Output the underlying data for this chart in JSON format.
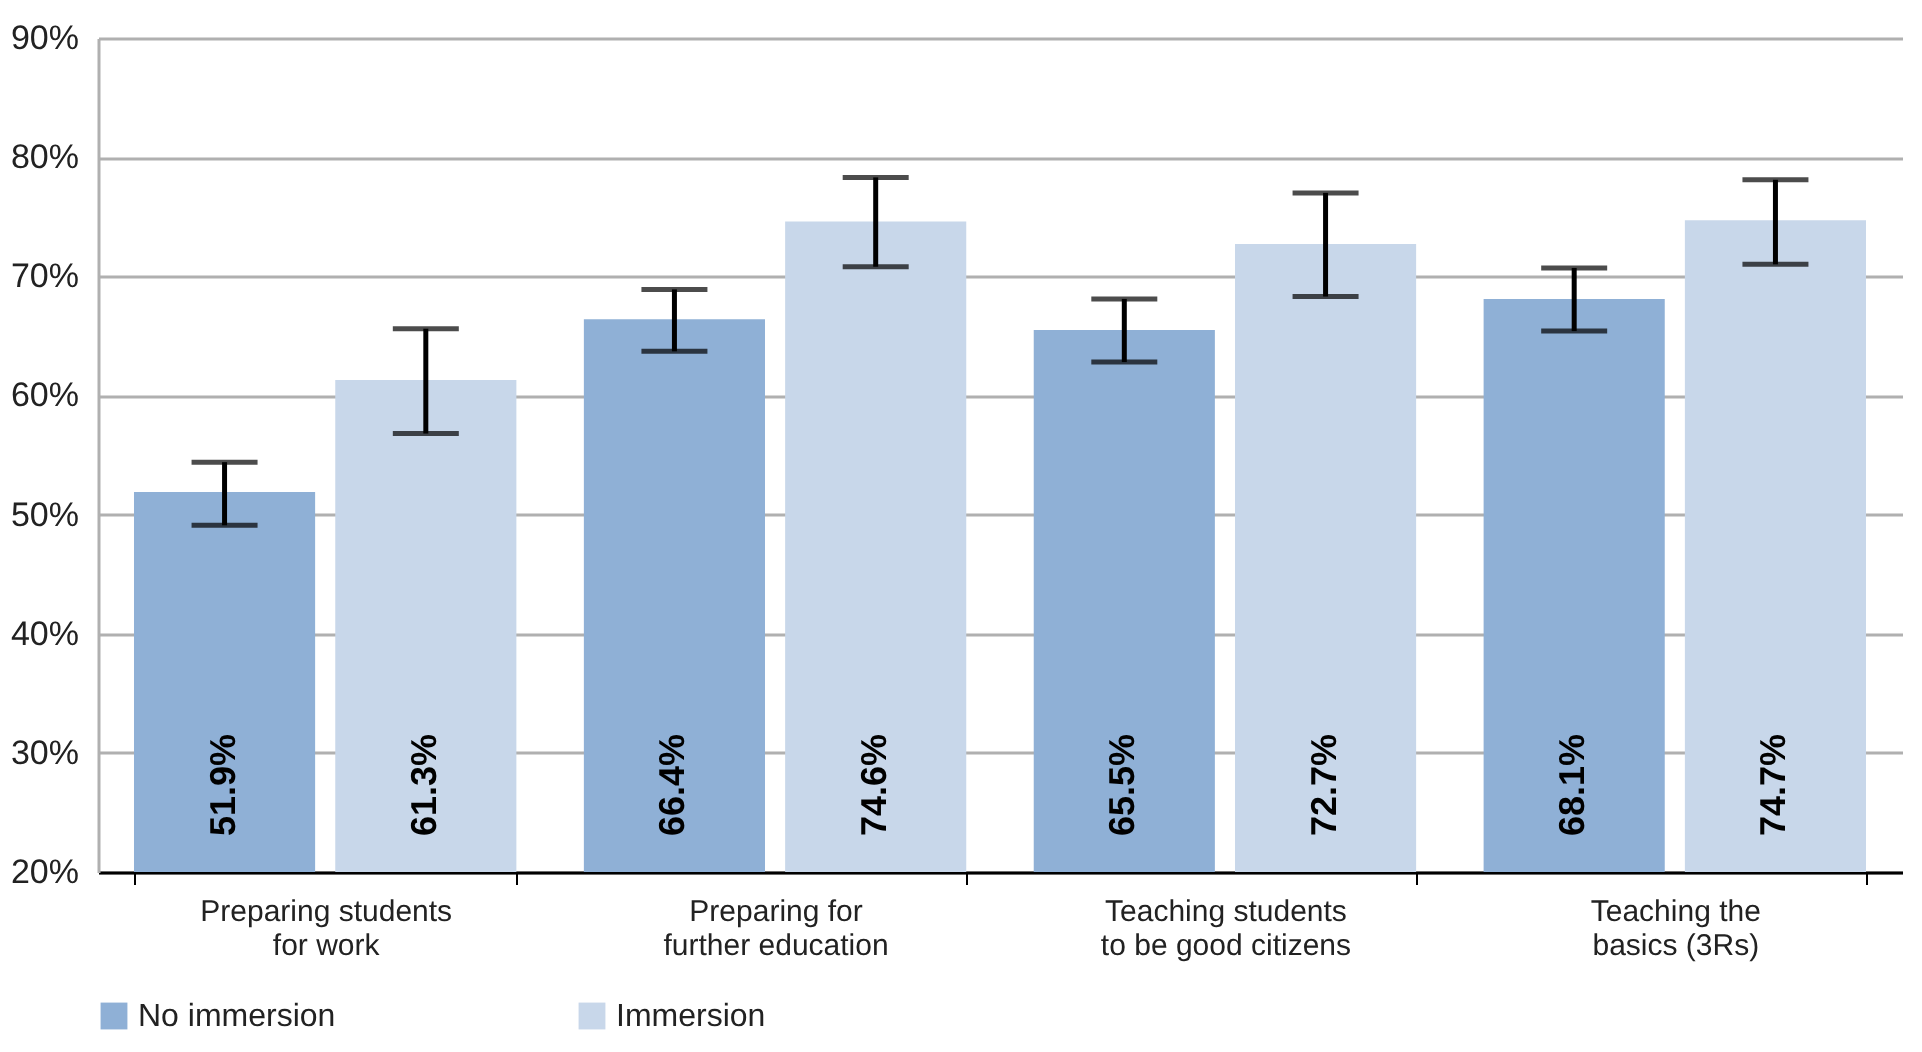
{
  "chart_data": {
    "type": "bar",
    "categories": [
      "Preparing students\nfor work",
      "Preparing for\nfurther education",
      "Teaching students\nto be good citizens",
      "Teaching the\nbasics (3Rs)"
    ],
    "series": [
      {
        "name": "No immersion",
        "color": "#8fb0d6",
        "values": [
          51.9,
          66.4,
          65.5,
          68.1
        ],
        "value_labels": [
          "51.9%",
          "66.4%",
          "65.5%",
          "68.1%"
        ],
        "errors": [
          [
            49.1,
            54.4
          ],
          [
            63.7,
            68.9
          ],
          [
            62.8,
            68.1
          ],
          [
            65.4,
            70.7
          ]
        ]
      },
      {
        "name": "Immersion",
        "color": "#c8d7ea",
        "values": [
          61.3,
          74.6,
          72.7,
          74.7
        ],
        "value_labels": [
          "61.3%",
          "74.6%",
          "72.7%",
          "74.7%"
        ],
        "errors": [
          [
            56.8,
            65.6
          ],
          [
            70.8,
            78.3
          ],
          [
            68.3,
            77.0
          ],
          [
            71.0,
            78.1
          ]
        ]
      }
    ],
    "ylim": [
      20,
      90
    ],
    "yticks": [
      {
        "value": 20,
        "label": "20%"
      },
      {
        "value": 30,
        "label": "30%"
      },
      {
        "value": 40,
        "label": "40%"
      },
      {
        "value": 50,
        "label": "50%"
      },
      {
        "value": 60,
        "label": "60%"
      },
      {
        "value": 70,
        "label": "70%"
      },
      {
        "value": 80,
        "label": "80%"
      },
      {
        "value": 90,
        "label": "90%"
      }
    ],
    "grid": "y",
    "legend": "bottom"
  }
}
